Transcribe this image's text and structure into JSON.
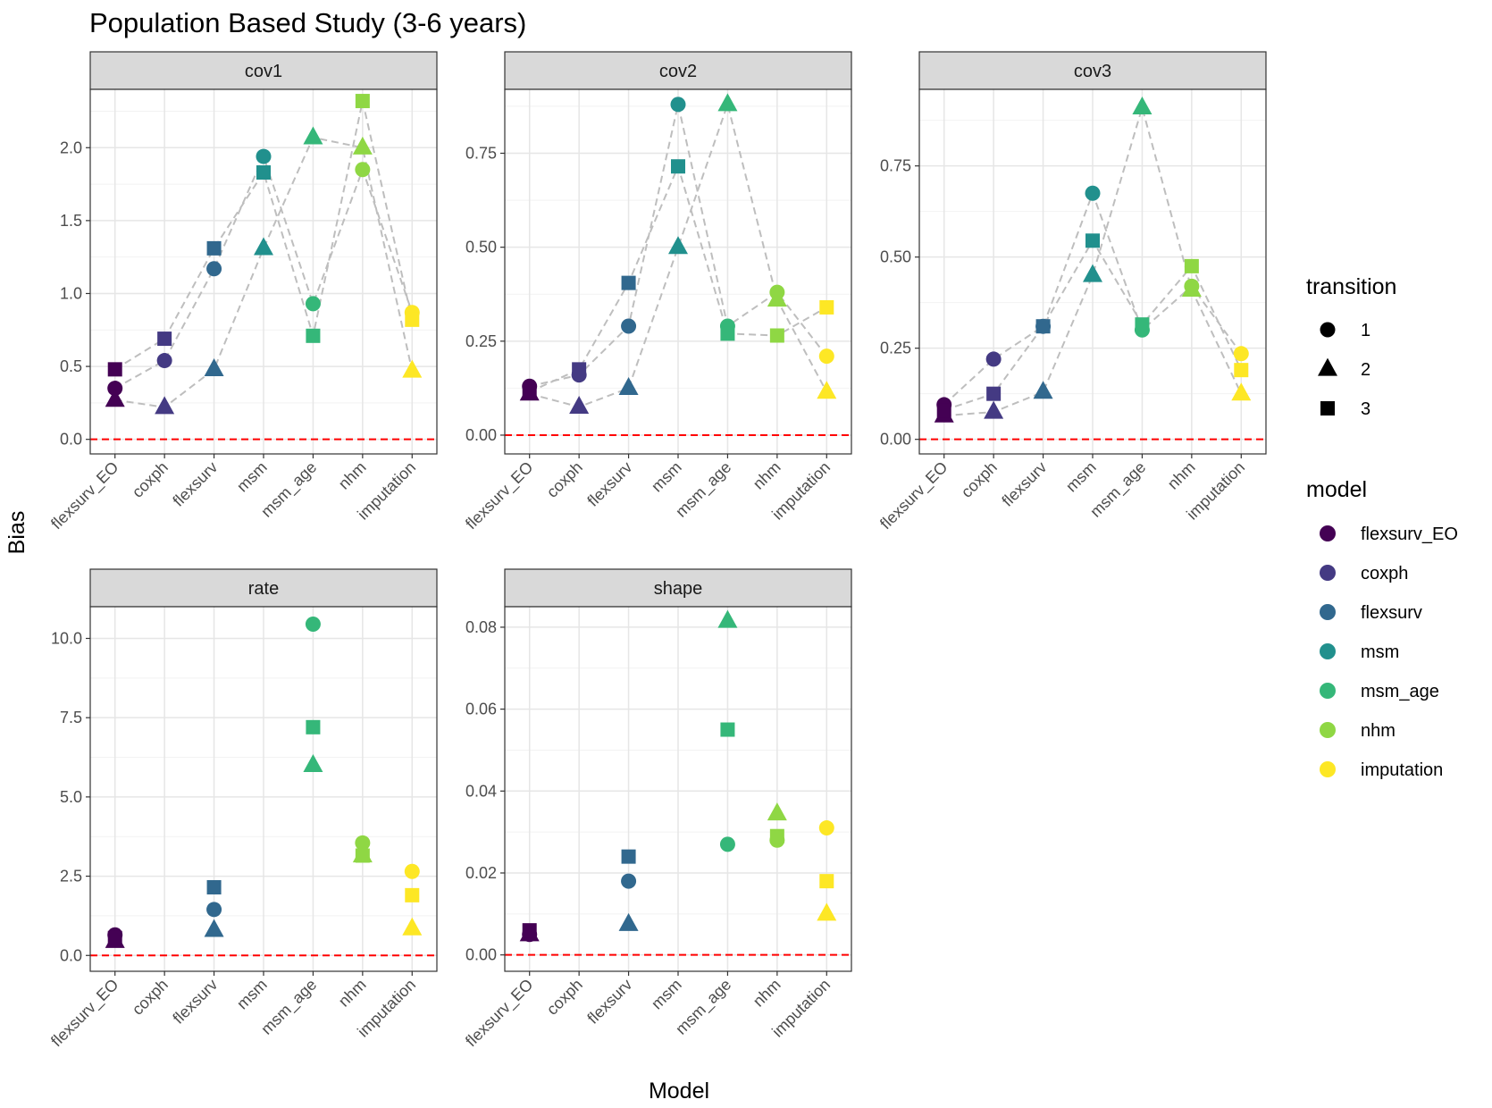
{
  "title": "Population Based Study (3-6 years)",
  "xlabel": "Model",
  "ylabel": "Bias",
  "categories": [
    "flexsurv_EO",
    "coxph",
    "flexsurv",
    "msm",
    "msm_age",
    "nhm",
    "imputation"
  ],
  "model_colors": {
    "flexsurv_EO": "#440154",
    "coxph": "#443a83",
    "flexsurv": "#31688e",
    "msm": "#21908d",
    "msm_age": "#35b779",
    "nhm": "#8fd744",
    "imputation": "#fde725"
  },
  "reference_line": {
    "y": 0,
    "color": "#ff0000",
    "style": "dashed"
  },
  "connector_line": {
    "color": "#bebebe",
    "style": "dashed"
  },
  "legend": {
    "transition": {
      "title": "transition",
      "items": [
        {
          "label": "1",
          "shape": "circle"
        },
        {
          "label": "2",
          "shape": "triangle"
        },
        {
          "label": "3",
          "shape": "square"
        }
      ]
    },
    "model": {
      "title": "model",
      "items": [
        "flexsurv_EO",
        "coxph",
        "flexsurv",
        "msm",
        "msm_age",
        "nhm",
        "imputation"
      ]
    }
  },
  "chart_data": [
    {
      "type": "scatter",
      "panel": "cov1",
      "ylim": [
        -0.1,
        2.4
      ],
      "yticks": [
        0.0,
        0.5,
        1.0,
        1.5,
        2.0
      ],
      "ytick_labels": [
        "0.0",
        "0.5",
        "1.0",
        "1.5",
        "2.0"
      ],
      "connected": true,
      "series": [
        {
          "name": "1",
          "values": [
            0.35,
            0.54,
            1.17,
            1.94,
            0.93,
            1.85,
            0.87
          ]
        },
        {
          "name": "2",
          "values": [
            0.27,
            0.22,
            0.48,
            1.31,
            2.07,
            2.0,
            0.47
          ]
        },
        {
          "name": "3",
          "values": [
            0.48,
            0.69,
            1.31,
            1.83,
            0.71,
            2.32,
            0.82
          ]
        }
      ]
    },
    {
      "type": "scatter",
      "panel": "cov2",
      "ylim": [
        -0.05,
        0.92
      ],
      "yticks": [
        0.0,
        0.25,
        0.5,
        0.75
      ],
      "ytick_labels": [
        "0.00",
        "0.25",
        "0.50",
        "0.75"
      ],
      "connected": true,
      "series": [
        {
          "name": "1",
          "values": [
            0.13,
            0.16,
            0.29,
            0.88,
            0.29,
            0.38,
            0.21
          ]
        },
        {
          "name": "2",
          "values": [
            0.11,
            0.075,
            0.125,
            0.5,
            0.88,
            0.36,
            0.115
          ]
        },
        {
          "name": "3",
          "values": [
            0.115,
            0.175,
            0.405,
            0.715,
            0.27,
            0.265,
            0.34
          ]
        }
      ]
    },
    {
      "type": "scatter",
      "panel": "cov3",
      "ylim": [
        -0.04,
        0.96
      ],
      "yticks": [
        0.0,
        0.25,
        0.5,
        0.75
      ],
      "ytick_labels": [
        "0.00",
        "0.25",
        "0.50",
        "0.75"
      ],
      "connected": true,
      "series": [
        {
          "name": "1",
          "values": [
            0.095,
            0.22,
            0.31,
            0.675,
            0.3,
            0.42,
            0.235
          ]
        },
        {
          "name": "2",
          "values": [
            0.065,
            0.075,
            0.13,
            0.45,
            0.91,
            0.41,
            0.125
          ]
        },
        {
          "name": "3",
          "values": [
            0.08,
            0.125,
            0.31,
            0.545,
            0.315,
            0.475,
            0.19
          ]
        }
      ]
    },
    {
      "type": "scatter",
      "panel": "rate",
      "ylim": [
        -0.5,
        11.0
      ],
      "yticks": [
        0.0,
        2.5,
        5.0,
        7.5,
        10.0
      ],
      "ytick_labels": [
        "0.0",
        "2.5",
        "5.0",
        "7.5",
        "10.0"
      ],
      "connected": false,
      "series": [
        {
          "name": "1",
          "values": [
            0.65,
            null,
            1.45,
            null,
            10.45,
            3.55,
            2.65
          ]
        },
        {
          "name": "2",
          "values": [
            0.45,
            null,
            0.8,
            null,
            6.0,
            3.15,
            0.85
          ]
        },
        {
          "name": "3",
          "values": [
            0.55,
            null,
            2.15,
            null,
            7.2,
            3.15,
            1.9
          ]
        }
      ]
    },
    {
      "type": "scatter",
      "panel": "shape",
      "ylim": [
        -0.004,
        0.085
      ],
      "yticks": [
        0.0,
        0.02,
        0.04,
        0.06,
        0.08
      ],
      "ytick_labels": [
        "0.00",
        "0.02",
        "0.04",
        "0.06",
        "0.08"
      ],
      "connected": false,
      "series": [
        {
          "name": "1",
          "values": [
            0.005,
            null,
            0.018,
            null,
            0.027,
            0.028,
            0.031
          ]
        },
        {
          "name": "2",
          "values": [
            0.005,
            null,
            0.0075,
            null,
            0.0815,
            0.0345,
            0.01
          ]
        },
        {
          "name": "3",
          "values": [
            0.006,
            null,
            0.024,
            null,
            0.055,
            0.029,
            0.018
          ]
        }
      ]
    }
  ]
}
